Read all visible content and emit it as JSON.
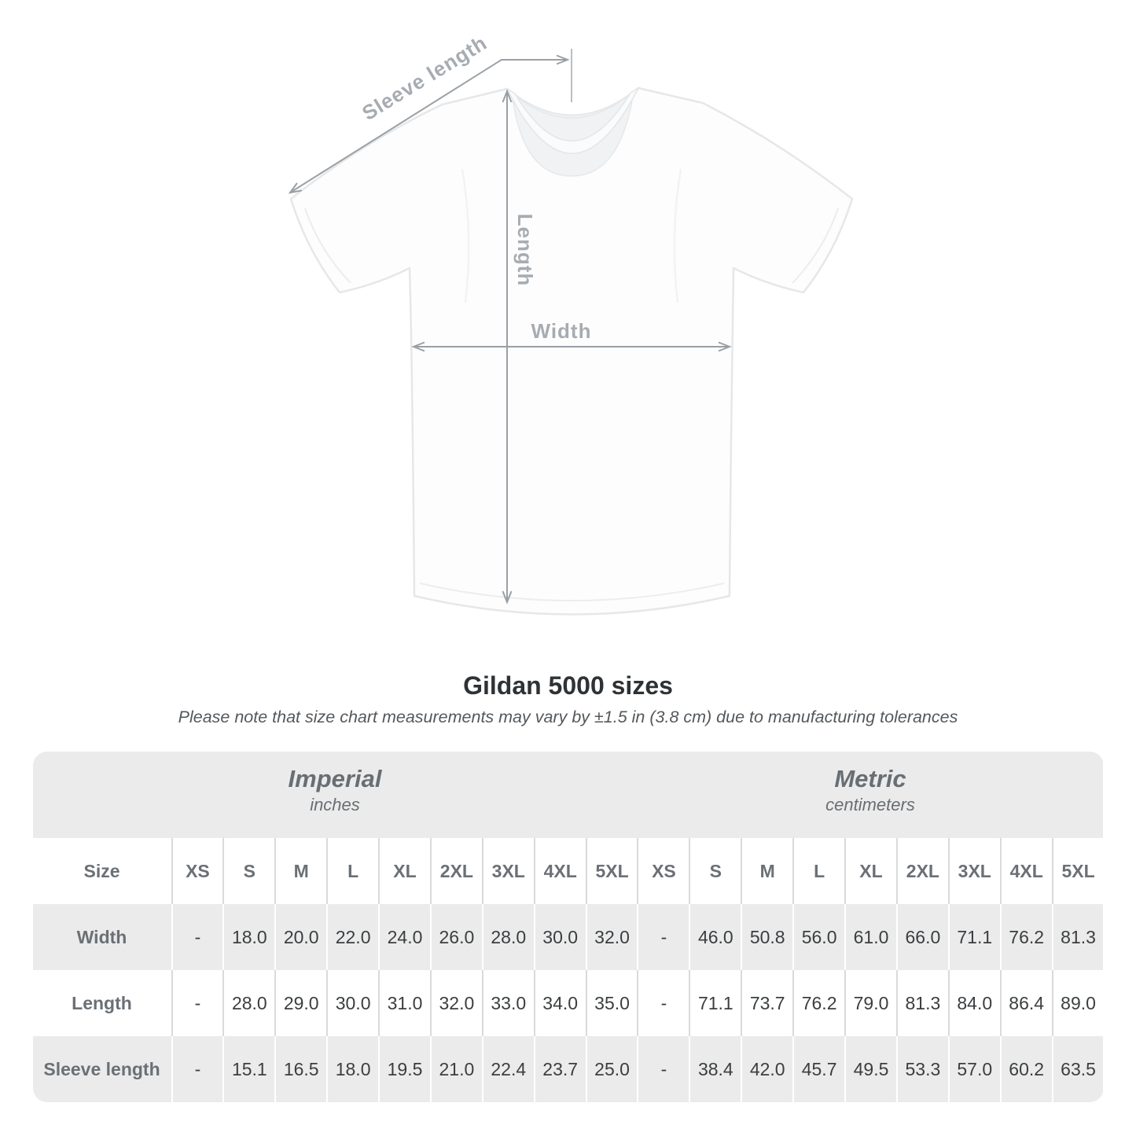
{
  "diagram": {
    "sleeve_length_label": "Sleeve length",
    "length_label": "Length",
    "width_label": "Width",
    "colors": {
      "annotation_line": "#9aa0a5",
      "annotation_text": "#a6acb1",
      "shirt_fill": "#fdfdfd",
      "shirt_outline": "#e5e7e9"
    }
  },
  "heading": {
    "title": "Gildan 5000 sizes",
    "note": "Please note that size chart measurements may vary by ±1.5 in (3.8 cm) due to manufacturing tolerances"
  },
  "size_table": {
    "size_column_header": "Size",
    "sizes": [
      "XS",
      "S",
      "M",
      "L",
      "XL",
      "2XL",
      "3XL",
      "4XL",
      "5XL"
    ],
    "sections": [
      {
        "name": "Imperial",
        "unit": "inches"
      },
      {
        "name": "Metric",
        "unit": "centimeters"
      }
    ],
    "rows": [
      {
        "label": "Width",
        "imperial": [
          "-",
          "18.0",
          "20.0",
          "22.0",
          "24.0",
          "26.0",
          "28.0",
          "30.0",
          "32.0"
        ],
        "metric": [
          "-",
          "46.0",
          "50.8",
          "56.0",
          "61.0",
          "66.0",
          "71.1",
          "76.2",
          "81.3"
        ]
      },
      {
        "label": "Length",
        "imperial": [
          "-",
          "28.0",
          "29.0",
          "30.0",
          "31.0",
          "32.0",
          "33.0",
          "34.0",
          "35.0"
        ],
        "metric": [
          "-",
          "71.1",
          "73.7",
          "76.2",
          "79.0",
          "81.3",
          "84.0",
          "86.4",
          "89.0"
        ]
      },
      {
        "label": "Sleeve length",
        "imperial": [
          "-",
          "15.1",
          "16.5",
          "18.0",
          "19.5",
          "21.0",
          "22.4",
          "23.7",
          "25.0"
        ],
        "metric": [
          "-",
          "38.4",
          "42.0",
          "45.7",
          "49.5",
          "53.3",
          "57.0",
          "60.2",
          "63.5"
        ]
      }
    ],
    "colors": {
      "band_gray": "#ebebeb",
      "header_text": "#6b7076",
      "data_text": "#3b3e40",
      "separator_on_white": "#d9dadb",
      "separator_on_gray": "#ffffff"
    }
  },
  "chart_data": {
    "type": "table",
    "title": "Gildan 5000 sizes",
    "subtitle": "Please note that size chart measurements may vary by ±1.5 in (3.8 cm) due to manufacturing tolerances",
    "sections": [
      {
        "name": "Imperial",
        "unit": "inches",
        "columns": [
          "XS",
          "S",
          "M",
          "L",
          "XL",
          "2XL",
          "3XL",
          "4XL",
          "5XL"
        ],
        "rows": [
          {
            "label": "Width",
            "values": [
              "-",
              "18.0",
              "20.0",
              "22.0",
              "24.0",
              "26.0",
              "28.0",
              "30.0",
              "32.0"
            ]
          },
          {
            "label": "Length",
            "values": [
              "-",
              "28.0",
              "29.0",
              "30.0",
              "31.0",
              "32.0",
              "33.0",
              "34.0",
              "35.0"
            ]
          },
          {
            "label": "Sleeve length",
            "values": [
              "-",
              "15.1",
              "16.5",
              "18.0",
              "19.5",
              "21.0",
              "22.4",
              "23.7",
              "25.0"
            ]
          }
        ]
      },
      {
        "name": "Metric",
        "unit": "centimeters",
        "columns": [
          "XS",
          "S",
          "M",
          "L",
          "XL",
          "2XL",
          "3XL",
          "4XL",
          "5XL"
        ],
        "rows": [
          {
            "label": "Width",
            "values": [
              "-",
              "46.0",
              "50.8",
              "56.0",
              "61.0",
              "66.0",
              "71.1",
              "76.2",
              "81.3"
            ]
          },
          {
            "label": "Length",
            "values": [
              "-",
              "71.1",
              "73.7",
              "76.2",
              "79.0",
              "81.3",
              "84.0",
              "86.4",
              "89.0"
            ]
          },
          {
            "label": "Sleeve length",
            "values": [
              "-",
              "38.4",
              "42.0",
              "45.7",
              "49.5",
              "53.3",
              "57.0",
              "60.2",
              "63.5"
            ]
          }
        ]
      }
    ]
  }
}
